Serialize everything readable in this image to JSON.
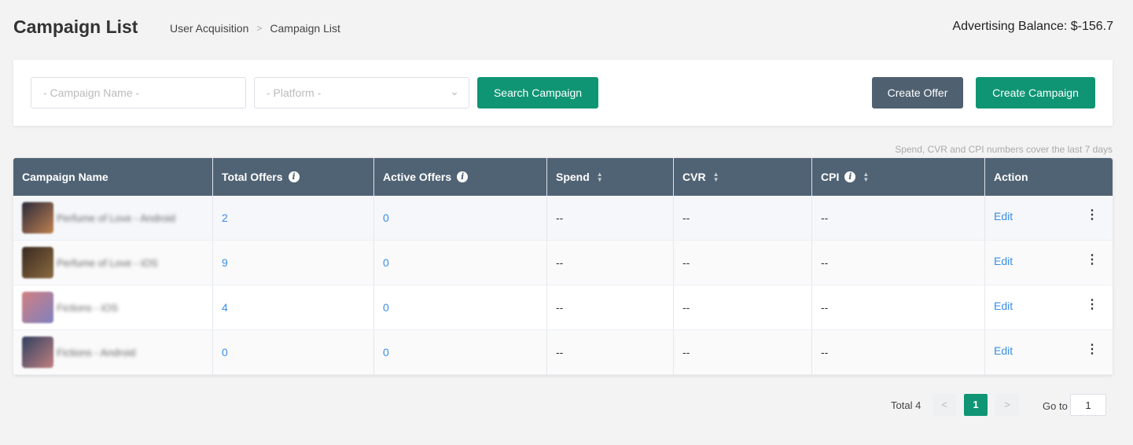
{
  "header": {
    "title": "Campaign List",
    "breadcrumb": [
      "User Acquisition",
      "Campaign List"
    ],
    "balance": "Advertising Balance: $-156.7"
  },
  "filters": {
    "campaign_name_placeholder": "- Campaign Name -",
    "platform_placeholder": "- Platform -",
    "search_label": "Search Campaign",
    "create_offer_label": "Create Offer",
    "create_campaign_label": "Create Campaign"
  },
  "note": "Spend, CVR and CPI numbers cover the last 7 days",
  "table": {
    "columns": [
      "Campaign Name",
      "Total Offers",
      "Active Offers",
      "Spend",
      "CVR",
      "CPI",
      "Action"
    ],
    "rows": [
      {
        "name": "Perfume of Love - Android",
        "total": "2",
        "active": "0",
        "spend": "--",
        "cvr": "--",
        "cpi": "--",
        "action": "Edit"
      },
      {
        "name": "Perfume of Love - iOS",
        "total": "9",
        "active": "0",
        "spend": "--",
        "cvr": "--",
        "cpi": "--",
        "action": "Edit"
      },
      {
        "name": "Fictions - iOS",
        "total": "4",
        "active": "0",
        "spend": "--",
        "cvr": "--",
        "cpi": "--",
        "action": "Edit"
      },
      {
        "name": "Fictions - Android",
        "total": "0",
        "active": "0",
        "spend": "--",
        "cvr": "--",
        "cpi": "--",
        "action": "Edit"
      }
    ]
  },
  "pagination": {
    "total": "Total 4",
    "current": "1",
    "goto_label": "Go to",
    "goto_value": "1"
  },
  "colors": {
    "primary": "#0f9574",
    "secondary": "#4f6070",
    "header": "#506374",
    "link": "#3a8ee6"
  }
}
